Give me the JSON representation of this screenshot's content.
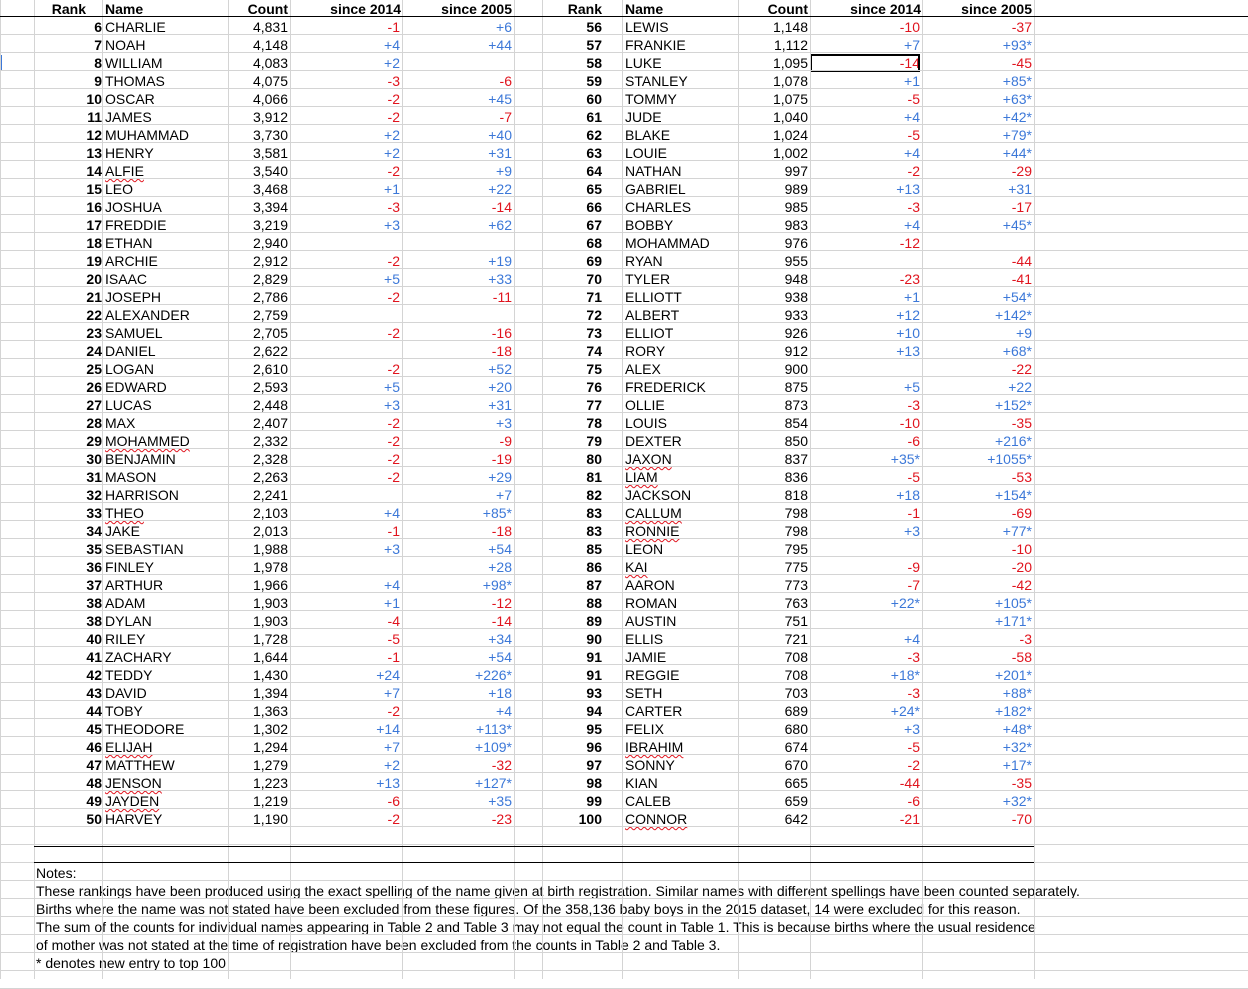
{
  "headers": {
    "rank": "Rank",
    "name": "Name",
    "count": "Count",
    "since2014": "since 2014",
    "since2005": "since 2005"
  },
  "left_rows": [
    [
      "6",
      "CHARLIE",
      "4,831",
      "-1",
      "+6"
    ],
    [
      "7",
      "NOAH",
      "4,148",
      "+4",
      "+44"
    ],
    [
      "8",
      "WILLIAM",
      "4,083",
      "+2",
      ""
    ],
    [
      "9",
      "THOMAS",
      "4,075",
      "-3",
      "-6"
    ],
    [
      "10",
      "OSCAR",
      "4,066",
      "-2",
      "+45"
    ],
    [
      "11",
      "JAMES",
      "3,912",
      "-2",
      "-7"
    ],
    [
      "12",
      "MUHAMMAD",
      "3,730",
      "+2",
      "+40"
    ],
    [
      "13",
      "HENRY",
      "3,581",
      "+2",
      "+31"
    ],
    [
      "14",
      "ALFIE",
      "3,540",
      "-2",
      "+9"
    ],
    [
      "15",
      "LEO",
      "3,468",
      "+1",
      "+22"
    ],
    [
      "16",
      "JOSHUA",
      "3,394",
      "-3",
      "-14"
    ],
    [
      "17",
      "FREDDIE",
      "3,219",
      "+3",
      "+62"
    ],
    [
      "18",
      "ETHAN",
      "2,940",
      "",
      ""
    ],
    [
      "19",
      "ARCHIE",
      "2,912",
      "-2",
      "+19"
    ],
    [
      "20",
      "ISAAC",
      "2,829",
      "+5",
      "+33"
    ],
    [
      "21",
      "JOSEPH",
      "2,786",
      "-2",
      "-11"
    ],
    [
      "22",
      "ALEXANDER",
      "2,759",
      "",
      ""
    ],
    [
      "23",
      "SAMUEL",
      "2,705",
      "-2",
      "-16"
    ],
    [
      "24",
      "DANIEL",
      "2,622",
      "",
      "-18"
    ],
    [
      "25",
      "LOGAN",
      "2,610",
      "-2",
      "+52"
    ],
    [
      "26",
      "EDWARD",
      "2,593",
      "+5",
      "+20"
    ],
    [
      "27",
      "LUCAS",
      "2,448",
      "+3",
      "+31"
    ],
    [
      "28",
      "MAX",
      "2,407",
      "-2",
      "+3"
    ],
    [
      "29",
      "MOHAMMED",
      "2,332",
      "-2",
      "-9"
    ],
    [
      "30",
      "BENJAMIN",
      "2,328",
      "-2",
      "-19"
    ],
    [
      "31",
      "MASON",
      "2,263",
      "-2",
      "+29"
    ],
    [
      "32",
      "HARRISON",
      "2,241",
      "",
      "+7"
    ],
    [
      "33",
      "THEO",
      "2,103",
      "+4",
      "+85*"
    ],
    [
      "34",
      "JAKE",
      "2,013",
      "-1",
      "-18"
    ],
    [
      "35",
      "SEBASTIAN",
      "1,988",
      "+3",
      "+54"
    ],
    [
      "36",
      "FINLEY",
      "1,978",
      "",
      "+28"
    ],
    [
      "37",
      "ARTHUR",
      "1,966",
      "+4",
      "+98*"
    ],
    [
      "38",
      "ADAM",
      "1,903",
      "+1",
      "-12"
    ],
    [
      "38",
      "DYLAN",
      "1,903",
      "-4",
      "-14"
    ],
    [
      "40",
      "RILEY",
      "1,728",
      "-5",
      "+34"
    ],
    [
      "41",
      "ZACHARY",
      "1,644",
      "-1",
      "+54"
    ],
    [
      "42",
      "TEDDY",
      "1,430",
      "+24",
      "+226*"
    ],
    [
      "43",
      "DAVID",
      "1,394",
      "+7",
      "+18"
    ],
    [
      "44",
      "TOBY",
      "1,363",
      "-2",
      "+4"
    ],
    [
      "45",
      "THEODORE",
      "1,302",
      "+14",
      "+113*"
    ],
    [
      "46",
      "ELIJAH",
      "1,294",
      "+7",
      "+109*"
    ],
    [
      "47",
      "MATTHEW",
      "1,279",
      "+2",
      "-32"
    ],
    [
      "48",
      "JENSON",
      "1,223",
      "+13",
      "+127*"
    ],
    [
      "49",
      "JAYDEN",
      "1,219",
      "-6",
      "+35"
    ],
    [
      "50",
      "HARVEY",
      "1,190",
      "-2",
      "-23"
    ]
  ],
  "right_rows": [
    [
      "56",
      "LEWIS",
      "1,148",
      "-10",
      "-37"
    ],
    [
      "57",
      "FRANKIE",
      "1,112",
      "+7",
      "+93*"
    ],
    [
      "58",
      "LUKE",
      "1,095",
      "-14",
      "-45"
    ],
    [
      "59",
      "STANLEY",
      "1,078",
      "+1",
      "+85*"
    ],
    [
      "60",
      "TOMMY",
      "1,075",
      "-5",
      "+63*"
    ],
    [
      "61",
      "JUDE",
      "1,040",
      "+4",
      "+42*"
    ],
    [
      "62",
      "BLAKE",
      "1,024",
      "-5",
      "+79*"
    ],
    [
      "63",
      "LOUIE",
      "1,002",
      "+4",
      "+44*"
    ],
    [
      "64",
      "NATHAN",
      "997",
      "-2",
      "-29"
    ],
    [
      "65",
      "GABRIEL",
      "989",
      "+13",
      "+31"
    ],
    [
      "66",
      "CHARLES",
      "985",
      "-3",
      "-17"
    ],
    [
      "67",
      "BOBBY",
      "983",
      "+4",
      "+45*"
    ],
    [
      "68",
      "MOHAMMAD",
      "976",
      "-12",
      ""
    ],
    [
      "69",
      "RYAN",
      "955",
      "",
      "-44"
    ],
    [
      "70",
      "TYLER",
      "948",
      "-23",
      "-41"
    ],
    [
      "71",
      "ELLIOTT",
      "938",
      "+1",
      "+54*"
    ],
    [
      "72",
      "ALBERT",
      "933",
      "+12",
      "+142*"
    ],
    [
      "73",
      "ELLIOT",
      "926",
      "+10",
      "+9"
    ],
    [
      "74",
      "RORY",
      "912",
      "+13",
      "+68*"
    ],
    [
      "75",
      "ALEX",
      "900",
      "",
      "-22"
    ],
    [
      "76",
      "FREDERICK",
      "875",
      "+5",
      "+22"
    ],
    [
      "77",
      "OLLIE",
      "873",
      "-3",
      "+152*"
    ],
    [
      "78",
      "LOUIS",
      "854",
      "-10",
      "-35"
    ],
    [
      "79",
      "DEXTER",
      "850",
      "-6",
      "+216*"
    ],
    [
      "80",
      "JAXON",
      "837",
      "+35*",
      "+1055*"
    ],
    [
      "81",
      "LIAM",
      "836",
      "-5",
      "-53"
    ],
    [
      "82",
      "JACKSON",
      "818",
      "+18",
      "+154*"
    ],
    [
      "83",
      "CALLUM",
      "798",
      "-1",
      "-69"
    ],
    [
      "83",
      "RONNIE",
      "798",
      "+3",
      "+77*"
    ],
    [
      "85",
      "LEON",
      "795",
      "",
      "-10"
    ],
    [
      "86",
      "KAI",
      "775",
      "-9",
      "-20"
    ],
    [
      "87",
      "AARON",
      "773",
      "-7",
      "-42"
    ],
    [
      "88",
      "ROMAN",
      "763",
      "+22*",
      "+105*"
    ],
    [
      "89",
      "AUSTIN",
      "751",
      "",
      "+171*"
    ],
    [
      "90",
      "ELLIS",
      "721",
      "+4",
      "-3"
    ],
    [
      "91",
      "JAMIE",
      "708",
      "-3",
      "-58"
    ],
    [
      "91",
      "REGGIE",
      "708",
      "+18*",
      "+201*"
    ],
    [
      "93",
      "SETH",
      "703",
      "-3",
      "+88*"
    ],
    [
      "94",
      "CARTER",
      "689",
      "+24*",
      "+182*"
    ],
    [
      "95",
      "FELIX",
      "680",
      "+3",
      "+48*"
    ],
    [
      "96",
      "IBRAHIM",
      "674",
      "-5",
      "+32*"
    ],
    [
      "97",
      "SONNY",
      "670",
      "-2",
      "+17*"
    ],
    [
      "98",
      "KIAN",
      "665",
      "-44",
      "-35"
    ],
    [
      "99",
      "CALEB",
      "659",
      "-6",
      "+32*"
    ],
    [
      "100",
      "CONNOR",
      "642",
      "-21",
      "-70"
    ]
  ],
  "spellcheck_names": [
    "ALFIE",
    "MOHAMMED",
    "THEO",
    "ELIJAH",
    "JENSON",
    "JAYDEN",
    "JAXON",
    "LIAM",
    "CALLUM",
    "RONNIE",
    "KAI",
    "IBRAHIM",
    "CONNOR"
  ],
  "selected_cell": "since2014 row LUKE",
  "notes": {
    "title": "Notes:",
    "line1": "These rankings have been produced using the exact spelling of the name given at birth registration. Similar names with different spellings have been counted separately.",
    "line2": "Births where the name was not stated have been excluded from these figures. Of the 358,136 baby boys in the 2015 dataset, 14 were excluded for this reason.",
    "line3": "The sum of the counts for individual names appearing in Table 2 and Table 3 may not equal the count in Table 1. This is because births where the usual residence",
    "line4": "of mother was not stated at the time of registration have been excluded from the counts in Table 2 and Table 3.",
    "line5": "* denotes new entry to top 100"
  },
  "colors": {
    "positive": "#3c78d8",
    "negative": "#e0141e",
    "grid": "#d4d4d4"
  }
}
